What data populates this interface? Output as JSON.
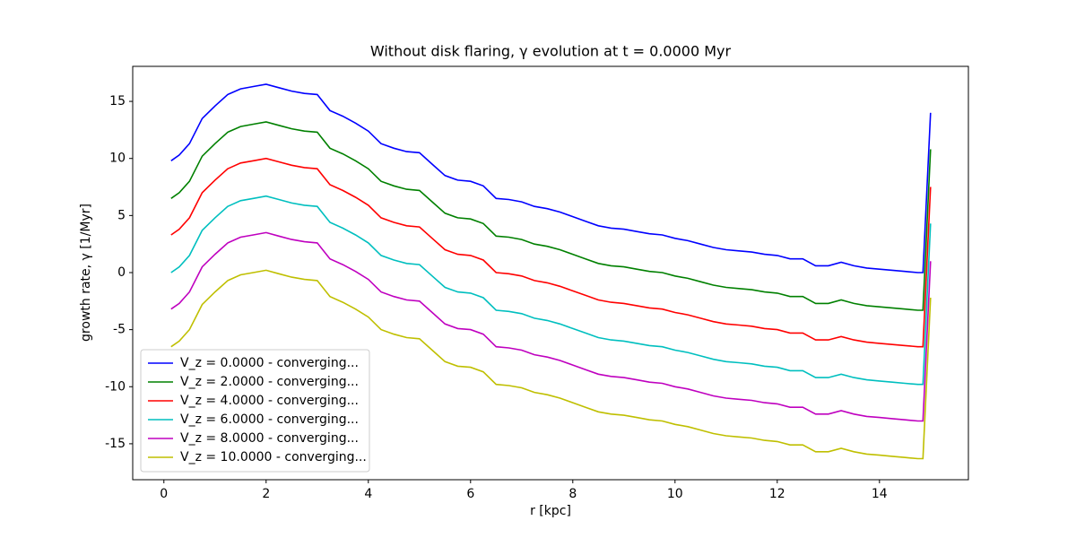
{
  "chart_data": {
    "type": "line",
    "title": "Without disk flaring, γ evolution at t = 0.0000 Myr",
    "xlabel": "r [kpc]",
    "ylabel": "growth rate, γ [1/Myr]",
    "x": [
      0.14,
      0.3,
      0.5,
      0.75,
      1.0,
      1.25,
      1.5,
      1.75,
      2.0,
      2.25,
      2.5,
      2.75,
      3.0,
      3.25,
      3.5,
      3.75,
      4.0,
      4.25,
      4.5,
      4.75,
      5.0,
      5.25,
      5.5,
      5.75,
      6.0,
      6.25,
      6.5,
      6.75,
      7.0,
      7.25,
      7.5,
      7.75,
      8.0,
      8.25,
      8.5,
      8.75,
      9.0,
      9.25,
      9.5,
      9.75,
      10.0,
      10.25,
      10.5,
      10.75,
      11.0,
      11.25,
      11.5,
      11.75,
      12.0,
      12.25,
      12.5,
      12.75,
      13.0,
      13.25,
      13.5,
      13.75,
      14.0,
      14.25,
      14.5,
      14.75,
      14.85,
      15.0
    ],
    "series": [
      {
        "name": "V_z = 0.0000 - converging...",
        "color": "#0000ff",
        "values": [
          9.8,
          10.3,
          11.3,
          13.5,
          14.6,
          15.6,
          16.1,
          16.3,
          16.5,
          16.2,
          15.9,
          15.7,
          15.6,
          14.2,
          13.7,
          13.1,
          12.4,
          11.3,
          10.9,
          10.6,
          10.5,
          9.5,
          8.5,
          8.1,
          8.0,
          7.6,
          6.5,
          6.4,
          6.2,
          5.8,
          5.6,
          5.3,
          4.9,
          4.5,
          4.1,
          3.9,
          3.8,
          3.6,
          3.4,
          3.3,
          3.0,
          2.8,
          2.5,
          2.2,
          2.0,
          1.9,
          1.8,
          1.6,
          1.5,
          1.2,
          1.2,
          0.6,
          0.6,
          0.9,
          0.6,
          0.4,
          0.3,
          0.2,
          0.1,
          0.0,
          0.0,
          14.0
        ]
      },
      {
        "name": "V_z = 2.0000 - converging...",
        "color": "#008000",
        "values": [
          6.5,
          7.0,
          8.0,
          10.2,
          11.3,
          12.3,
          12.8,
          13.0,
          13.2,
          12.9,
          12.6,
          12.4,
          12.3,
          10.9,
          10.4,
          9.8,
          9.1,
          8.0,
          7.6,
          7.3,
          7.2,
          6.2,
          5.2,
          4.8,
          4.7,
          4.3,
          3.2,
          3.1,
          2.9,
          2.5,
          2.3,
          2.0,
          1.6,
          1.2,
          0.8,
          0.6,
          0.5,
          0.3,
          0.1,
          0.0,
          -0.3,
          -0.5,
          -0.8,
          -1.1,
          -1.3,
          -1.4,
          -1.5,
          -1.7,
          -1.8,
          -2.1,
          -2.1,
          -2.7,
          -2.7,
          -2.4,
          -2.7,
          -2.9,
          -3.0,
          -3.1,
          -3.2,
          -3.3,
          -3.3,
          10.8
        ]
      },
      {
        "name": "V_z = 4.0000 - converging...",
        "color": "#ff0000",
        "values": [
          3.3,
          3.8,
          4.8,
          7.0,
          8.1,
          9.1,
          9.6,
          9.8,
          10.0,
          9.7,
          9.4,
          9.2,
          9.1,
          7.7,
          7.2,
          6.6,
          5.9,
          4.8,
          4.4,
          4.1,
          4.0,
          3.0,
          2.0,
          1.6,
          1.5,
          1.1,
          0.0,
          -0.1,
          -0.3,
          -0.7,
          -0.9,
          -1.2,
          -1.6,
          -2.0,
          -2.4,
          -2.6,
          -2.7,
          -2.9,
          -3.1,
          -3.2,
          -3.5,
          -3.7,
          -4.0,
          -4.3,
          -4.5,
          -4.6,
          -4.7,
          -4.9,
          -5.0,
          -5.3,
          -5.3,
          -5.9,
          -5.9,
          -5.6,
          -5.9,
          -6.1,
          -6.2,
          -6.3,
          -6.4,
          -6.5,
          -6.5,
          7.5
        ]
      },
      {
        "name": "V_z = 6.0000 - converging...",
        "color": "#00bfbf",
        "values": [
          0.0,
          0.5,
          1.5,
          3.7,
          4.8,
          5.8,
          6.3,
          6.5,
          6.7,
          6.4,
          6.1,
          5.9,
          5.8,
          4.4,
          3.9,
          3.3,
          2.6,
          1.5,
          1.1,
          0.8,
          0.7,
          -0.3,
          -1.3,
          -1.7,
          -1.8,
          -2.2,
          -3.3,
          -3.4,
          -3.6,
          -4.0,
          -4.2,
          -4.5,
          -4.9,
          -5.3,
          -5.7,
          -5.9,
          -6.0,
          -6.2,
          -6.4,
          -6.5,
          -6.8,
          -7.0,
          -7.3,
          -7.6,
          -7.8,
          -7.9,
          -8.0,
          -8.2,
          -8.3,
          -8.6,
          -8.6,
          -9.2,
          -9.2,
          -8.9,
          -9.2,
          -9.4,
          -9.5,
          -9.6,
          -9.7,
          -9.8,
          -9.8,
          4.3
        ]
      },
      {
        "name": "V_z = 8.0000 - converging...",
        "color": "#bf00bf",
        "values": [
          -3.2,
          -2.7,
          -1.7,
          0.5,
          1.6,
          2.6,
          3.1,
          3.3,
          3.5,
          3.2,
          2.9,
          2.7,
          2.6,
          1.2,
          0.7,
          0.1,
          -0.6,
          -1.7,
          -2.1,
          -2.4,
          -2.5,
          -3.5,
          -4.5,
          -4.9,
          -5.0,
          -5.4,
          -6.5,
          -6.6,
          -6.8,
          -7.2,
          -7.4,
          -7.7,
          -8.1,
          -8.5,
          -8.9,
          -9.1,
          -9.2,
          -9.4,
          -9.6,
          -9.7,
          -10.0,
          -10.2,
          -10.5,
          -10.8,
          -11.0,
          -11.1,
          -11.2,
          -11.4,
          -11.5,
          -11.8,
          -11.8,
          -12.4,
          -12.4,
          -12.1,
          -12.4,
          -12.6,
          -12.7,
          -12.8,
          -12.9,
          -13.0,
          -13.0,
          1.0
        ]
      },
      {
        "name": "V_z = 10.0000 - converging...",
        "color": "#bfbf00",
        "values": [
          -6.5,
          -6.0,
          -5.0,
          -2.8,
          -1.7,
          -0.7,
          -0.2,
          0.0,
          0.2,
          -0.1,
          -0.4,
          -0.6,
          -0.7,
          -2.1,
          -2.6,
          -3.2,
          -3.9,
          -5.0,
          -5.4,
          -5.7,
          -5.8,
          -6.8,
          -7.8,
          -8.2,
          -8.3,
          -8.7,
          -9.8,
          -9.9,
          -10.1,
          -10.5,
          -10.7,
          -11.0,
          -11.4,
          -11.8,
          -12.2,
          -12.4,
          -12.5,
          -12.7,
          -12.9,
          -13.0,
          -13.3,
          -13.5,
          -13.8,
          -14.1,
          -14.3,
          -14.4,
          -14.5,
          -14.7,
          -14.8,
          -15.1,
          -15.1,
          -15.7,
          -15.7,
          -15.4,
          -15.7,
          -15.9,
          -16.0,
          -16.1,
          -16.2,
          -16.3,
          -16.3,
          -2.2
        ]
      }
    ],
    "xlim": [
      -0.61,
      15.74
    ],
    "ylim": [
      -18.15,
      18.07
    ],
    "xticks": [
      0,
      2,
      4,
      6,
      8,
      10,
      12,
      14
    ],
    "yticks": [
      -15,
      -10,
      -5,
      0,
      5,
      10,
      15
    ],
    "legend": "lower left"
  }
}
